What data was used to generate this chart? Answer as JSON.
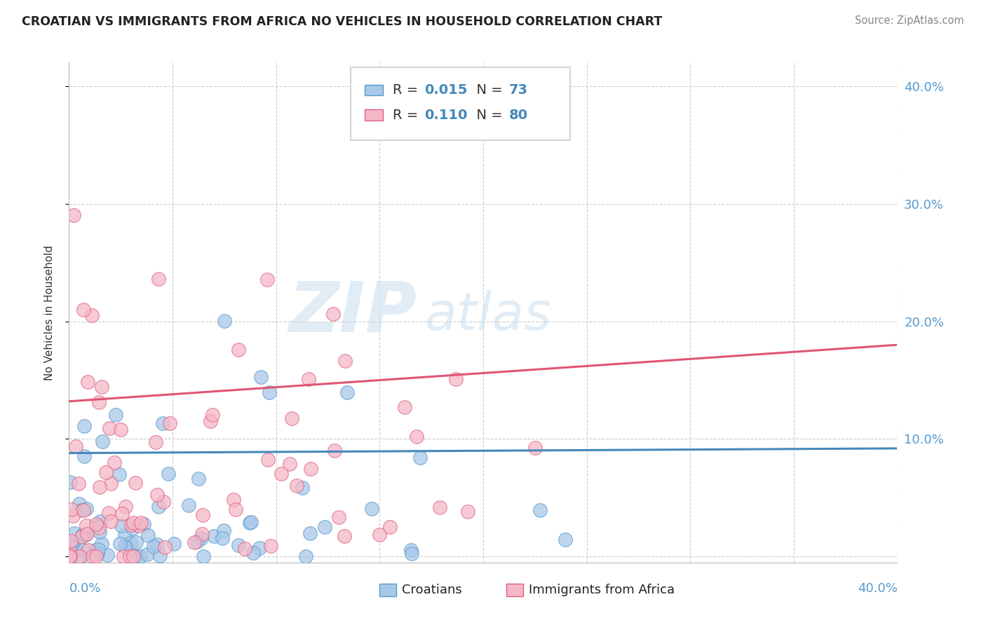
{
  "title": "CROATIAN VS IMMIGRANTS FROM AFRICA NO VEHICLES IN HOUSEHOLD CORRELATION CHART",
  "source": "Source: ZipAtlas.com",
  "ylabel": "No Vehicles in Household",
  "xlim": [
    0.0,
    0.4
  ],
  "ylim": [
    -0.005,
    0.42
  ],
  "watermark_zip": "ZIP",
  "watermark_atlas": "atlas",
  "color_blue": "#a8c8e8",
  "color_pink": "#f4b8c8",
  "color_blue_edge": "#5599cc",
  "color_pink_edge": "#e06080",
  "color_blue_line": "#4488bb",
  "color_pink_line": "#e05575",
  "background_color": "#ffffff",
  "grid_color": "#cccccc",
  "blue_line_x": [
    0.0,
    0.4
  ],
  "blue_line_y": [
    0.088,
    0.092
  ],
  "pink_line_x": [
    0.0,
    0.4
  ],
  "pink_line_y": [
    0.132,
    0.18
  ],
  "ytick_values": [
    0.0,
    0.1,
    0.2,
    0.3,
    0.4
  ],
  "ytick_labels": [
    "",
    "10.0%",
    "20.0%",
    "30.0%",
    "40.0%"
  ],
  "xtick_values": [
    0.0,
    0.05,
    0.1,
    0.15,
    0.2,
    0.25,
    0.3,
    0.35,
    0.4
  ],
  "seed_blue": 101,
  "seed_pink": 202,
  "blue_N": 73,
  "pink_N": 80
}
